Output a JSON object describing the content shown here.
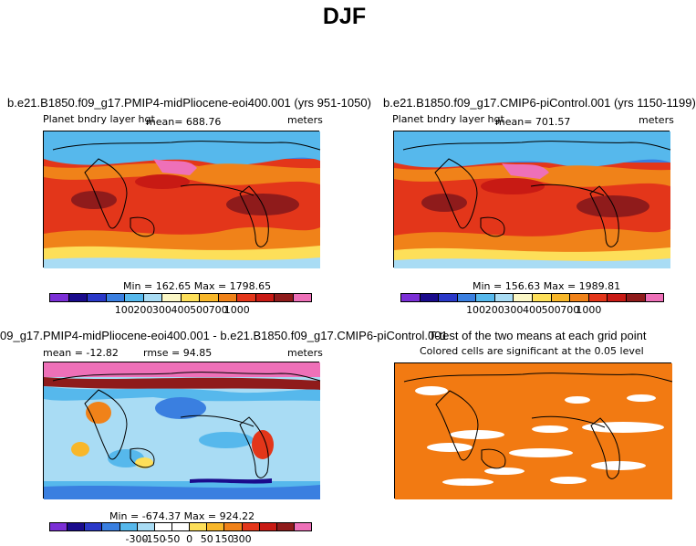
{
  "page_title": "DJF",
  "panels": [
    {
      "title": "b.e21.B1850.f09_g17.PMIP4-midPliocene-eoi400.001 (yrs 951-1050)",
      "left_label": "Planet bndry layer hgt",
      "mid_label": "mean= 688.76",
      "right_label": "meters",
      "minmax": "Min = 162.65 Max = 1798.65",
      "colorbar_ticks": [
        "100",
        "200",
        "300",
        "400",
        "500",
        "700",
        "1000"
      ]
    },
    {
      "title": "b.e21.B1850.f09_g17.CMIP6-piControl.001 (yrs 1150-1199)",
      "left_label": "Planet bndry layer hgt",
      "mid_label": "mean= 701.57",
      "right_label": "meters",
      "minmax": "Min = 156.63 Max = 1989.81",
      "colorbar_ticks": [
        "100",
        "200",
        "300",
        "400",
        "500",
        "700",
        "1000"
      ]
    },
    {
      "title": "09_g17.PMIP4-midPliocene-eoi400.001 - b.e21.B1850.f09_g17.CMIP6-piControl.001",
      "left_label": "mean = -12.82",
      "mid_label": "rmse =  94.85",
      "right_label": "meters",
      "minmax": "Min = -674.37 Max = 924.22",
      "colorbar_ticks": [
        "-300",
        "-150",
        "-50",
        "0",
        "50",
        "150",
        "300"
      ]
    },
    {
      "title": "T-test of the two means at each grid point",
      "subtitle": "Colored cells are significant at the 0.05 level"
    }
  ],
  "colors": {
    "abs_scale": [
      "#7b2fd6",
      "#1a0b8c",
      "#2a38c8",
      "#3a7fe0",
      "#56b8ec",
      "#a9dcf4",
      "#fbf7c6",
      "#fddf59",
      "#f8b72a",
      "#f08219",
      "#e3361a",
      "#c81a14",
      "#8f1b1b",
      "#ee70b8"
    ],
    "diff_scale": [
      "#7b2fd6",
      "#1a0b8c",
      "#2a38c8",
      "#3a7fe0",
      "#56b8ec",
      "#a9dcf4",
      "#ffffff",
      "#ffffff",
      "#fddf59",
      "#f8b72a",
      "#f08219",
      "#e3361a",
      "#c81a14",
      "#8f1b1b",
      "#ee70b8"
    ],
    "ttest_fill": "#f27a12"
  }
}
